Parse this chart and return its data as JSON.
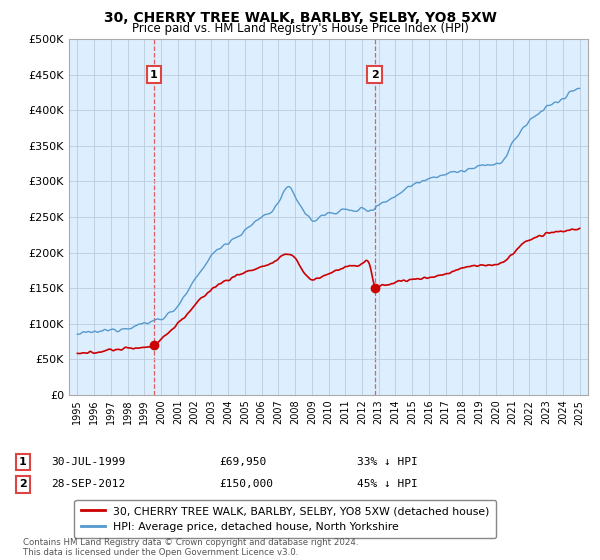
{
  "title": "30, CHERRY TREE WALK, BARLBY, SELBY, YO8 5XW",
  "subtitle": "Price paid vs. HM Land Registry's House Price Index (HPI)",
  "ylim": [
    0,
    500000
  ],
  "yticks": [
    0,
    50000,
    100000,
    150000,
    200000,
    250000,
    300000,
    350000,
    400000,
    450000,
    500000
  ],
  "ytick_labels": [
    "£0",
    "£50K",
    "£100K",
    "£150K",
    "£200K",
    "£250K",
    "£300K",
    "£350K",
    "£400K",
    "£450K",
    "£500K"
  ],
  "xlim_start": 1994.5,
  "xlim_end": 2025.5,
  "xticks": [
    1995,
    1996,
    1997,
    1998,
    1999,
    2000,
    2001,
    2002,
    2003,
    2004,
    2005,
    2006,
    2007,
    2008,
    2009,
    2010,
    2011,
    2012,
    2013,
    2014,
    2015,
    2016,
    2017,
    2018,
    2019,
    2020,
    2021,
    2022,
    2023,
    2024,
    2025
  ],
  "background_color": "#ffffff",
  "plot_bg_color": "#ddeeff",
  "grid_color": "#bbccdd",
  "red_line_color": "#cc0000",
  "blue_line_color": "#5599cc",
  "vline_color": "#dd4444",
  "marker1_date": 1999.58,
  "marker1_value": 69950,
  "marker1_label": "1",
  "marker2_date": 2012.75,
  "marker2_value": 150000,
  "marker2_label": "2",
  "legend1_text": "30, CHERRY TREE WALK, BARLBY, SELBY, YO8 5XW (detached house)",
  "legend2_text": "HPI: Average price, detached house, North Yorkshire",
  "annot1_box": "1",
  "annot1_date": "30-JUL-1999",
  "annot1_price": "£69,950",
  "annot1_hpi": "33% ↓ HPI",
  "annot2_box": "2",
  "annot2_date": "28-SEP-2012",
  "annot2_price": "£150,000",
  "annot2_hpi": "45% ↓ HPI",
  "footer": "Contains HM Land Registry data © Crown copyright and database right 2024.\nThis data is licensed under the Open Government Licence v3.0."
}
